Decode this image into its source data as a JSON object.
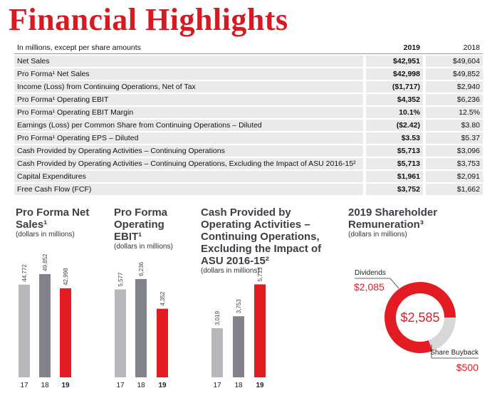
{
  "title": "Financial Highlights",
  "table": {
    "header": [
      "In millions, except per share amounts",
      "2019",
      "2018"
    ],
    "rows": [
      [
        "Net Sales",
        "$42,951",
        "$49,604"
      ],
      [
        "Pro Forma¹ Net Sales",
        "$42,998",
        "$49,852"
      ],
      [
        "Income (Loss) from Continuing Operations, Net of Tax",
        "($1,717)",
        "$2,940"
      ],
      [
        "Pro Forma¹ Operating EBIT",
        "$4,352",
        "$6,236"
      ],
      [
        "Pro Forma¹ Operating EBIT Margin",
        "10.1%",
        "12.5%"
      ],
      [
        "Earnings (Loss) per Common Share from Continuing Operations – Diluted",
        "($2.42)",
        "$3.80"
      ],
      [
        "Pro Forma¹ Operating EPS – Diluted",
        "$3.53",
        "$5.37"
      ],
      [
        "Cash Provided by Operating Activities – Continuing Operations",
        "$5,713",
        "$3,096"
      ],
      [
        "Cash Provided by Operating Activities – Continuing Operations, Excluding the Impact of ASU 2016-15²",
        "$5,713",
        "$3,753"
      ],
      [
        "Capital Expenditures",
        "$1,961",
        "$2,091"
      ],
      [
        "Free Cash Flow (FCF)",
        "$3,752",
        "$1,662"
      ]
    ]
  },
  "chart_data": [
    {
      "type": "bar",
      "title": "Pro Forma Net Sales¹",
      "subtitle": "(dollars in millions)",
      "categories": [
        "17",
        "18",
        "19"
      ],
      "values": [
        44772,
        49852,
        42998
      ],
      "value_labels": [
        "44,772",
        "49,852",
        "42,998"
      ],
      "colors": [
        "#b5b7ba",
        "#80848a",
        "#e31b23"
      ],
      "ylim": [
        0,
        55000
      ]
    },
    {
      "type": "bar",
      "title": "Pro Forma Operating EBIT¹",
      "subtitle": "(dollars in millions)",
      "categories": [
        "17",
        "18",
        "19"
      ],
      "values": [
        5577,
        6236,
        4352
      ],
      "value_labels": [
        "5,577",
        "6,236",
        "4,352"
      ],
      "colors": [
        "#b5b7ba",
        "#80848a",
        "#e31b23"
      ],
      "ylim": [
        0,
        7000
      ]
    },
    {
      "type": "bar",
      "title": "Cash Provided by Operating Activities – Continuing Operations, Excluding the Impact of ASU 2016-15²",
      "subtitle": "(dollars in millions)",
      "categories": [
        "17",
        "18",
        "19"
      ],
      "values": [
        3019,
        3753,
        5713
      ],
      "value_labels": [
        "3,019",
        "3,753",
        "5,713"
      ],
      "colors": [
        "#b5b7ba",
        "#80848a",
        "#e31b23"
      ],
      "ylim": [
        0,
        7000
      ]
    },
    {
      "type": "donut",
      "title": "2019 Shareholder Remuneration³",
      "subtitle": "(dollars in millions)",
      "categories": [
        "Dividends",
        "Share Buyback"
      ],
      "values": [
        2085,
        500
      ],
      "value_labels": [
        "$2,085",
        "$500"
      ],
      "colors": [
        "#e31b23",
        "#d6d7d9"
      ],
      "center_label": "$2,585"
    }
  ]
}
